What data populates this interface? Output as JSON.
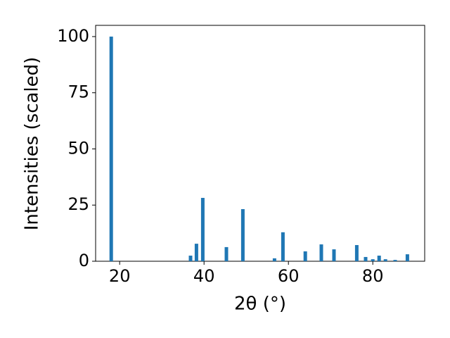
{
  "chart_data": {
    "type": "bar",
    "x": [
      18.0,
      36.8,
      38.2,
      39.7,
      45.3,
      49.2,
      56.7,
      58.7,
      64.0,
      67.8,
      70.8,
      76.2,
      78.3,
      80.0,
      81.5,
      83.0,
      85.3,
      88.2
    ],
    "values": [
      100,
      2.5,
      7.8,
      28.2,
      6.3,
      23.2,
      1.3,
      12.9,
      4.4,
      7.5,
      5.3,
      7.2,
      1.9,
      0.9,
      2.5,
      0.9,
      0.6,
      3.1
    ],
    "color": "#1f77b4",
    "xlabel": "2θ (°)",
    "ylabel": "Intensities (scaled)",
    "xlim": [
      14.3,
      92.3
    ],
    "ylim": [
      0,
      105
    ],
    "xticks": [
      20,
      40,
      60,
      80
    ],
    "yticks": [
      0,
      25,
      50,
      75,
      100
    ],
    "grid": false
  }
}
